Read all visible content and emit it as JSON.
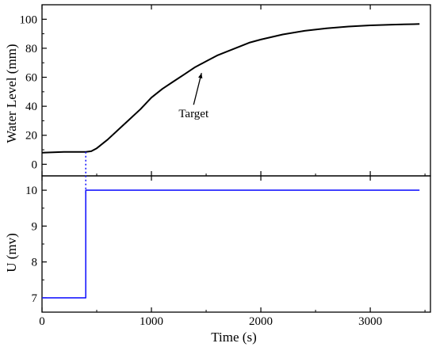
{
  "chart_data": [
    {
      "type": "line",
      "title": "",
      "xlabel": "",
      "ylabel": "Water Level (mm)",
      "xlim": [
        0,
        3550
      ],
      "ylim": [
        -8,
        110
      ],
      "yticks": [
        0,
        20,
        40,
        60,
        80,
        100
      ],
      "xticks": [
        0,
        1000,
        2000,
        3000
      ],
      "grid": false,
      "series": [
        {
          "color": "#000000",
          "x": [
            0,
            100,
            200,
            300,
            400,
            450,
            500,
            600,
            700,
            800,
            900,
            1000,
            1100,
            1200,
            1300,
            1400,
            1500,
            1600,
            1700,
            1800,
            1900,
            2000,
            2200,
            2400,
            2600,
            2800,
            3000,
            3200,
            3400,
            3450
          ],
          "y": [
            8,
            8.3,
            8.5,
            8.5,
            8.5,
            9,
            11,
            17,
            24,
            31,
            38,
            46,
            52,
            57,
            62,
            67,
            71,
            75,
            78,
            81,
            84,
            86,
            89.5,
            92,
            93.8,
            95,
            95.8,
            96.3,
            96.6,
            96.7
          ]
        }
      ],
      "annotations": [
        {
          "text": "Target",
          "x": 1400,
          "y": 64
        }
      ],
      "marker_x": 400
    },
    {
      "type": "line",
      "title": "",
      "xlabel": "Time (s)",
      "ylabel": "U (mv)",
      "xlim": [
        0,
        3550
      ],
      "ylim": [
        6.6,
        10.4
      ],
      "yticks": [
        7,
        8,
        9,
        10
      ],
      "xticks": [
        0,
        1000,
        2000,
        3000
      ],
      "xtick_labels": [
        "0",
        "1000",
        "2000",
        "3000"
      ],
      "grid": false,
      "series": [
        {
          "color": "#1a1aff",
          "x": [
            0,
            400,
            400,
            3450
          ],
          "y": [
            7,
            7,
            10,
            10
          ]
        }
      ]
    }
  ]
}
